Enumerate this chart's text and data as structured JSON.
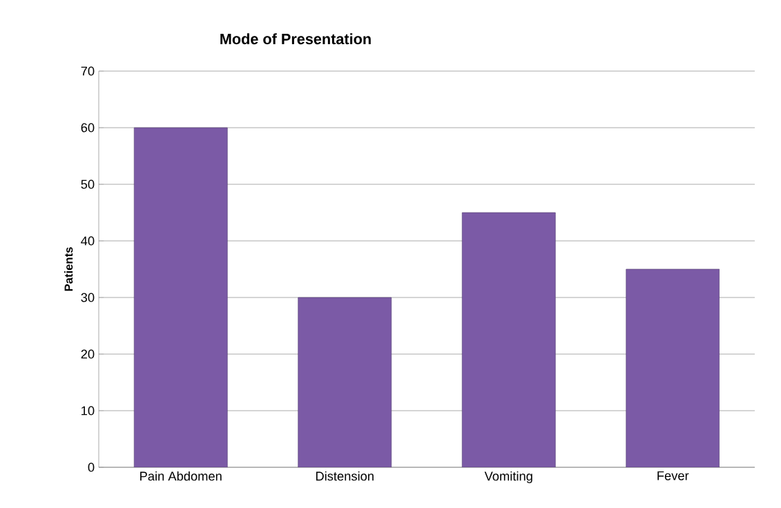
{
  "chart_data": {
    "type": "bar",
    "title": "Mode of Presentation",
    "ylabel": "Patients",
    "categories": [
      "Pain Abdomen",
      "Distension",
      "Vomiting",
      "Fever"
    ],
    "values": [
      60,
      30,
      45,
      35
    ],
    "color": "#7b5aa6",
    "ylim": [
      0,
      70
    ],
    "yticks": [
      0,
      10,
      20,
      30,
      40,
      50,
      60,
      70
    ],
    "grid": "y"
  }
}
